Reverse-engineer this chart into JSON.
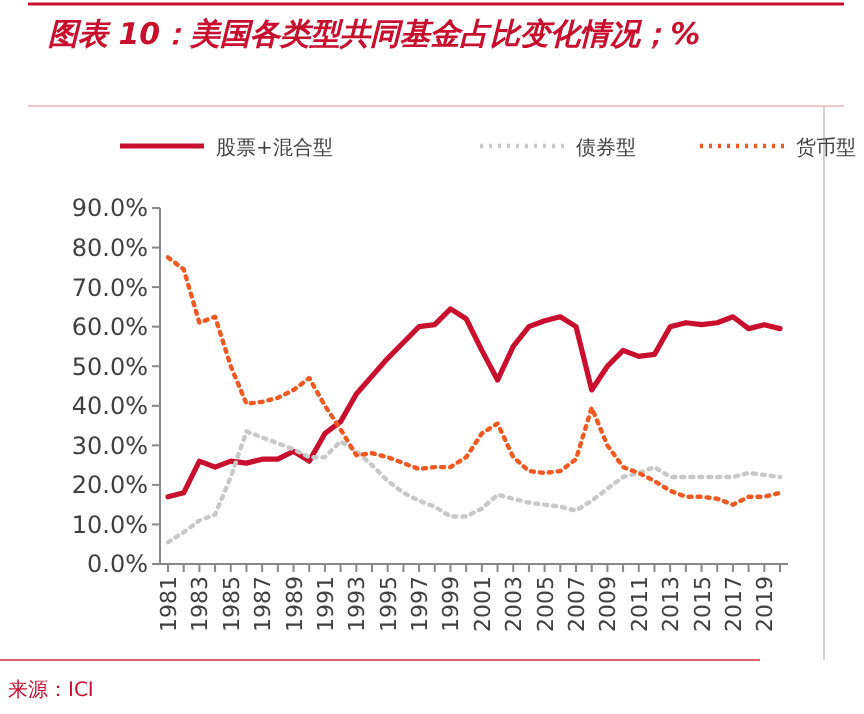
{
  "chart_data": {
    "type": "line",
    "title": "图表 10：美国各类型共同基金占比变化情况；%",
    "annotations": [
      "来源：ICI"
    ],
    "categories": [
      "1981",
      null,
      "1983",
      null,
      "1985",
      null,
      "1987",
      null,
      "1989",
      null,
      "1991",
      null,
      "1993",
      null,
      "1995",
      null,
      "1997",
      null,
      "1999",
      null,
      "2001",
      null,
      "2003",
      null,
      "2005",
      null,
      "2007",
      null,
      "2009",
      null,
      "2011",
      null,
      "2013",
      null,
      "2015",
      null,
      "2017",
      null,
      "2019",
      null
    ],
    "series": [
      {
        "name": "股票+混合型",
        "color": "#c8102e",
        "line_style": "solid",
        "values": [
          17,
          18,
          26,
          24.5,
          26,
          25.5,
          26.5,
          26.5,
          28.5,
          26,
          33,
          36,
          43,
          47.5,
          52,
          56,
          60,
          60.5,
          64.5,
          62,
          54,
          46.5,
          55,
          60,
          61.5,
          62.5,
          60,
          44,
          50,
          54,
          52.5,
          53,
          60,
          61,
          60.5,
          61,
          62.5,
          59.5,
          60.5,
          59.5
        ]
      },
      {
        "name": "债券型",
        "color": "#c8c8c8",
        "line_style": "dotted",
        "values": [
          5.5,
          8,
          11,
          12.5,
          22,
          33.5,
          32,
          30.5,
          29,
          27,
          27,
          31,
          28.5,
          25,
          21,
          18,
          16,
          14.5,
          12,
          12,
          14,
          17.5,
          16.5,
          15.5,
          15,
          14.5,
          13.5,
          16,
          19,
          22,
          23,
          24.5,
          22,
          22,
          22,
          22,
          22,
          23,
          22.5,
          22
        ]
      },
      {
        "name": "货币型",
        "color": "#f05a22",
        "line_style": "dotted",
        "values": [
          77.5,
          74.5,
          61,
          62.5,
          50,
          40.5,
          41,
          42,
          44,
          47,
          40,
          34,
          27.5,
          28,
          27,
          25.5,
          24,
          24.5,
          24.5,
          27,
          33,
          35.5,
          27,
          23.5,
          23,
          23.5,
          26.5,
          39.5,
          30,
          24.5,
          23,
          21,
          18.5,
          17,
          17,
          16.5,
          15,
          17,
          17,
          18
        ]
      }
    ],
    "ylim": [
      0,
      90
    ],
    "yticks": [
      {
        "value": 0,
        "label": "0.0%"
      },
      {
        "value": 10,
        "label": "10.0%"
      },
      {
        "value": 20,
        "label": "20.0%"
      },
      {
        "value": 30,
        "label": "30.0%"
      },
      {
        "value": 40,
        "label": "40.0%"
      },
      {
        "value": 50,
        "label": "50.0%"
      },
      {
        "value": 60,
        "label": "60.0%"
      },
      {
        "value": 70,
        "label": "70.0%"
      },
      {
        "value": 80,
        "label": "80.0%"
      },
      {
        "value": 90,
        "label": "90.0%"
      }
    ],
    "grid": false,
    "legend": "top",
    "marker": "none"
  }
}
